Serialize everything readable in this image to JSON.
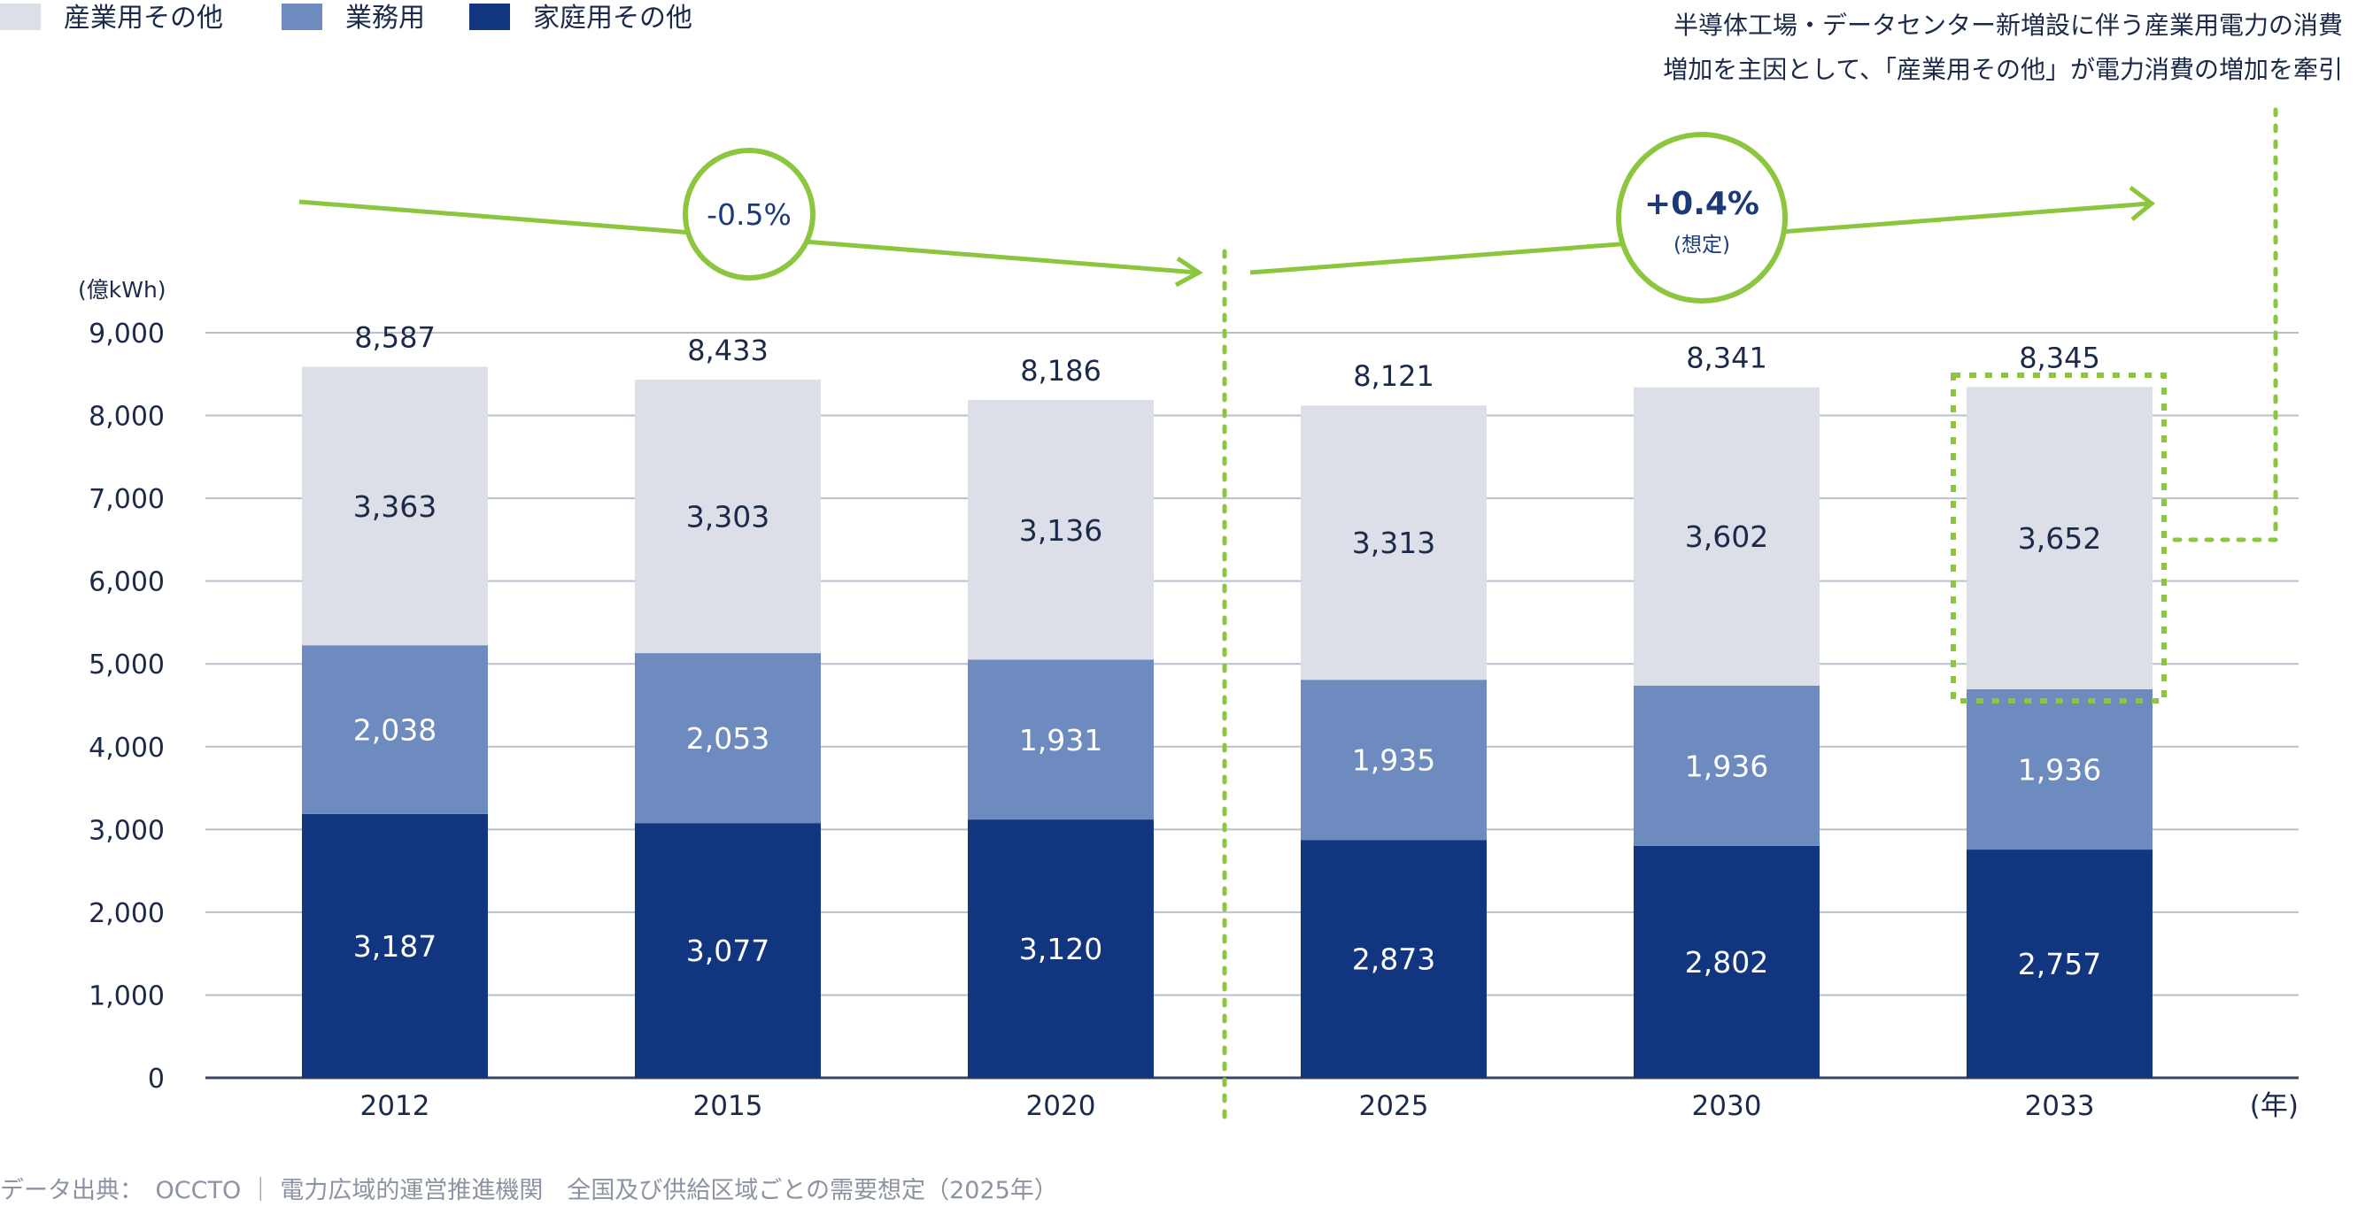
{
  "chart_data": {
    "type": "bar",
    "stacked": true,
    "categories": [
      "2012",
      "2015",
      "2020",
      "2025",
      "2030",
      "2033"
    ],
    "series": [
      {
        "name": "家庭用その他",
        "values": [
          3187,
          3077,
          3120,
          2873,
          2802,
          2757
        ],
        "color": "#12357f"
      },
      {
        "name": "業務用",
        "values": [
          2038,
          2053,
          1931,
          1935,
          1936,
          1936
        ],
        "color": "#6e8bc0"
      },
      {
        "name": "産業用その他",
        "values": [
          3363,
          3303,
          3136,
          3313,
          3602,
          3652
        ],
        "color": "#dcdfe8"
      }
    ],
    "totals": [
      "8,587",
      "8,433",
      "8,186",
      "8,121",
      "8,341",
      "8,345"
    ],
    "segment_labels": [
      [
        "3,187",
        "3,077",
        "3,120",
        "2,873",
        "2,802",
        "2,757"
      ],
      [
        "2,038",
        "2,053",
        "1,931",
        "1,935",
        "1,936",
        "1,936"
      ],
      [
        "3,363",
        "3,303",
        "3,136",
        "3,313",
        "3,602",
        "3,652"
      ]
    ],
    "ylim": [
      0,
      9000
    ],
    "yticks": [
      0,
      1000,
      2000,
      3000,
      4000,
      5000,
      6000,
      7000,
      8000,
      9000
    ],
    "ytick_labels": [
      "0",
      "1,000",
      "2,000",
      "3,000",
      "4,000",
      "5,000",
      "6,000",
      "7,000",
      "8,000",
      "9,000"
    ],
    "ylabel": "(億kWh)",
    "xlabel": "(年)",
    "grid": true,
    "legend_position": "top-left",
    "legend": [
      "産業用その他",
      "業務用",
      "家庭用その他"
    ],
    "annotations": {
      "past_rate": "-0.5%",
      "future_rate": "+0.4%",
      "future_rate_note": "(想定)",
      "note_lines": [
        "半導体工場・データセンター新増設に伴う産業用電力の消費",
        "増加を主因として、「産業用その他」が電力消費の増加を牽引"
      ],
      "accent_color": "#8cc63f"
    },
    "source": "データ出典：　OCCTO ｜ 電力広域的運営推進機関　全国及び供給区域ごとの需要想定（2025年）"
  }
}
